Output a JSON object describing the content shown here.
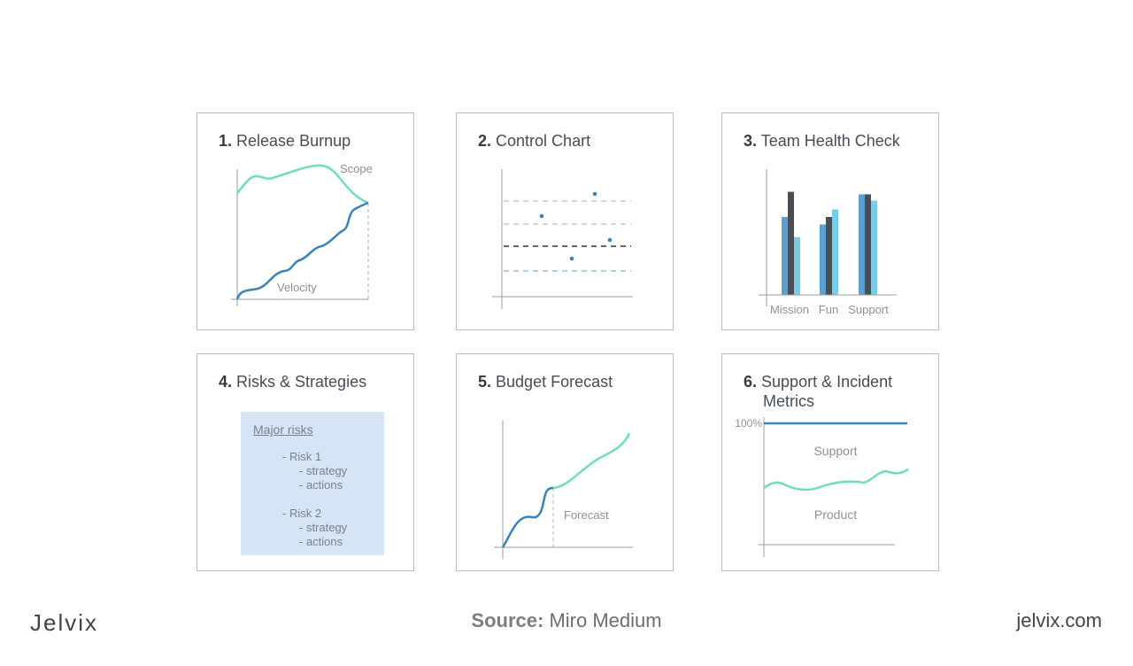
{
  "cards": [
    {
      "number": "1.",
      "title": "Release Burnup",
      "labels": {
        "scope": "Scope",
        "velocity": "Velocity"
      }
    },
    {
      "number": "2.",
      "title": "Control Chart"
    },
    {
      "number": "3.",
      "title": "Team Health Check",
      "chart_data": {
        "type": "bar",
        "categories": [
          "Mission",
          "Fun",
          "Support"
        ],
        "series": [
          {
            "values": [
              62,
              56,
              80
            ]
          },
          {
            "values": [
              82,
              62,
              80
            ]
          },
          {
            "values": [
              46,
              68,
              75
            ]
          }
        ],
        "colors": [
          "#5b9fd0",
          "#4a4d52",
          "#79cbe6"
        ],
        "ylim": [
          0,
          100
        ]
      }
    },
    {
      "number": "4.",
      "title": "Risks & Strategies",
      "box": {
        "heading": "Major risks",
        "lines": [
          "- Risk 1",
          "- strategy",
          "- actions",
          "- Risk 2",
          "- strategy",
          "- actions"
        ]
      }
    },
    {
      "number": "5.",
      "title": "Budget Forecast",
      "labels": {
        "forecast": "Forecast"
      }
    },
    {
      "number": "6.",
      "title": "Support & Incident",
      "title2": "Metrics",
      "labels": {
        "max": "100%",
        "support": "Support",
        "product": "Product"
      }
    }
  ],
  "footer": {
    "logo": "Jelvix",
    "source_label": "Source:",
    "source_value": " Miro Medium",
    "site": "jelvix.com"
  },
  "colors": {
    "teal": "#6fdcbf",
    "blue": "#3a82b8",
    "axis": "#9a9da1"
  }
}
